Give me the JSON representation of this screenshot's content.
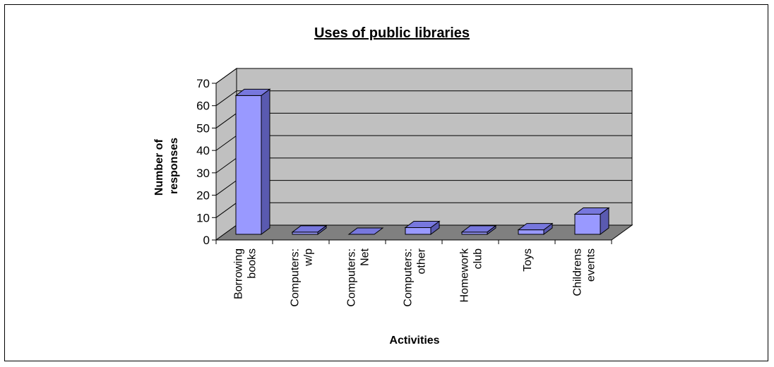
{
  "chart_data": {
    "type": "bar",
    "title": "Uses of public libraries",
    "xlabel": "Activities",
    "ylabel_lines": [
      "Number of",
      "responses"
    ],
    "categories": [
      [
        "Borrowing",
        "books"
      ],
      [
        "Computers:",
        "w/p"
      ],
      [
        "Computers:",
        "Net"
      ],
      [
        "Computers:",
        "other"
      ],
      [
        "Homework",
        "club"
      ],
      [
        "Toys"
      ],
      [
        "Childrens",
        "events"
      ]
    ],
    "values": [
      62,
      1,
      0,
      3,
      1,
      2,
      9
    ],
    "ylim": [
      0,
      70
    ],
    "yticks": [
      "0",
      "10",
      "20",
      "30",
      "40",
      "50",
      "60",
      "70"
    ],
    "grid": true,
    "three_d": true,
    "colors": {
      "bar_front": "#9999FF",
      "bar_top": "#7777DD",
      "bar_side": "#5A5AB0",
      "wall": "#C0C0C0",
      "floor": "#808080"
    }
  }
}
